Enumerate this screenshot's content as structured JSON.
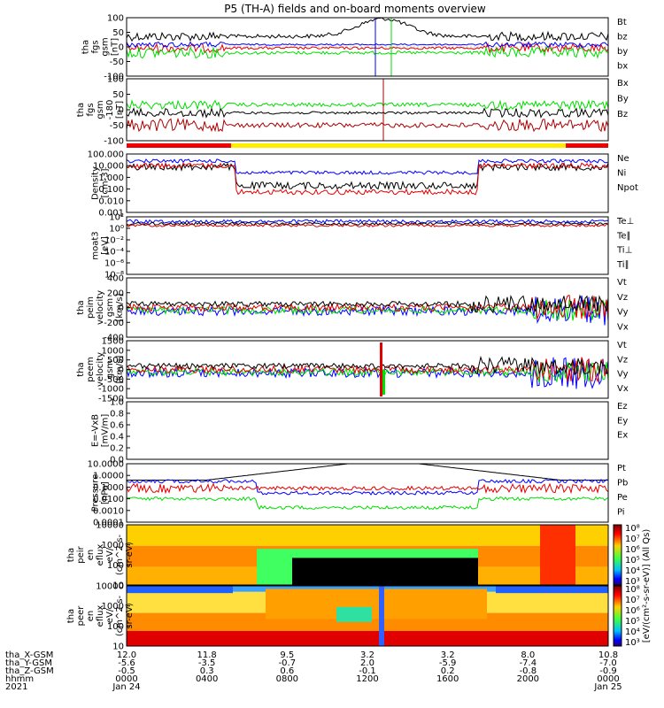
{
  "chart_data": {
    "type": "line",
    "title": "P5 (TH-A) fields and on-board moments overview",
    "colors": {
      "black": "#000000",
      "red": "#e00000",
      "green": "#00dd00",
      "blue": "#0000ff",
      "darkred": "#aa0000",
      "yellow": "#ffee00"
    },
    "panels": [
      {
        "ylabel": [
          "tha",
          "fgs",
          "gsm",
          "[nT]"
        ],
        "yticks": [
          "100",
          "50",
          "0",
          "-50",
          "-100"
        ],
        "legend": [
          [
            "Bt",
            "black"
          ],
          [
            "bz",
            "red"
          ],
          [
            "by",
            "green"
          ],
          [
            "bx",
            "blue"
          ]
        ]
      },
      {
        "ylabel": [
          "tha",
          "fgs",
          "gsm",
          "-180",
          "[nT]"
        ],
        "yticks": [
          "100",
          "50",
          "0",
          "-50",
          "-100"
        ],
        "legend": [
          [
            "Bx",
            "darkred"
          ],
          [
            "By",
            "green"
          ],
          [
            "Bz",
            "darkred"
          ]
        ]
      },
      {
        "ylabel": [
          "Density",
          "[cm-3]"
        ],
        "yticks": [
          "100.000",
          "10.000",
          "1.000",
          "0.100",
          "0.010",
          "0.001"
        ],
        "legend": [
          [
            "Ne",
            "red"
          ],
          [
            "Ni",
            "black"
          ],
          [
            "Npot",
            "blue"
          ]
        ]
      },
      {
        "ylabel": [
          "moat3",
          "[eV]"
        ],
        "yticks": [
          "10²",
          "10⁰",
          "10⁻²",
          "10⁻⁴",
          "10⁻⁶",
          "10⁻⁸"
        ],
        "legend": [
          [
            "Te⊥",
            "red"
          ],
          [
            "Te∥",
            "black"
          ],
          [
            "Ti⊥",
            "blue"
          ],
          [
            "Ti∥",
            "green"
          ]
        ]
      },
      {
        "ylabel": [
          "tha",
          "peim",
          "velocity",
          "gsm",
          "[km/s]"
        ],
        "yticks": [
          "400",
          "200",
          "0",
          "-200",
          "-400"
        ],
        "legend": [
          [
            "Vt",
            "black"
          ],
          [
            "Vz",
            "red"
          ],
          [
            "Vy",
            "green"
          ],
          [
            "Vx",
            "blue"
          ]
        ]
      },
      {
        "ylabel": [
          "tha",
          "peem",
          "velocity",
          "gsm",
          "[km/s]"
        ],
        "yticks": [
          "1500",
          "1000",
          "500",
          "0",
          "-500",
          "-1000",
          "-1500"
        ],
        "legend": [
          [
            "Vt",
            "black"
          ],
          [
            "Vz",
            "red"
          ],
          [
            "Vy",
            "green"
          ],
          [
            "Vx",
            "blue"
          ]
        ]
      },
      {
        "ylabel": [
          "E=-VxB",
          "[mV/m]"
        ],
        "yticks": [
          "1.0",
          "0.8",
          "0.6",
          "0.4",
          "0.2",
          "0.0"
        ],
        "legend": [
          [
            "Ez",
            "red"
          ],
          [
            "Ey",
            "green"
          ],
          [
            "Ex",
            "blue"
          ]
        ]
      },
      {
        "ylabel": [
          "Pressure",
          "[nPa]"
        ],
        "yticks": [
          "10.0000",
          "1.0000",
          "0.1000",
          "0.0100",
          "0.0010",
          "0.0001"
        ],
        "legend": [
          [
            "Pt",
            "black"
          ],
          [
            "Pb",
            "red"
          ],
          [
            "Pe",
            "green"
          ],
          [
            "Pi",
            "blue"
          ]
        ]
      },
      {
        "ylabel": [
          "tha",
          "peir",
          "en",
          "eflux",
          "eV/",
          "(cm^2-s-",
          "sr-eV)"
        ],
        "yticks": [
          "10000",
          "1000",
          "100",
          "10"
        ],
        "legend": []
      },
      {
        "ylabel": [
          "tha",
          "peer",
          "en",
          "eflux",
          "eV/",
          "(cm^2-s-",
          "sr-eV)"
        ],
        "yticks": [
          "10000",
          "1000",
          "100",
          "10"
        ],
        "legend": []
      }
    ],
    "colorbar": {
      "label": "[eV/(cm²-s-sr-eV)] (All Qs)",
      "ticks_top": [
        "10⁸",
        "10⁷",
        "10⁶",
        "10⁵",
        "10⁴",
        "10³"
      ],
      "ticks_bottom": [
        "10⁸",
        "10⁷",
        "10⁶",
        "10⁵",
        "10⁴",
        "10³"
      ]
    },
    "xaxis": {
      "row_labels": [
        "tha_X-GSM",
        "tha_Y-GSM",
        "tha_Z-GSM",
        "hhmm",
        "2021"
      ],
      "ticks": [
        {
          "x": "12.0",
          "y": "-5.6",
          "z": "-0.5",
          "t": "0000",
          "d": "Jan 24"
        },
        {
          "x": "11.8",
          "y": "-3.5",
          "z": "0.3",
          "t": "0400",
          "d": ""
        },
        {
          "x": "9.5",
          "y": "-0.7",
          "z": "0.6",
          "t": "0800",
          "d": ""
        },
        {
          "x": "3.2",
          "y": "2.0",
          "z": "-0.1",
          "t": "1200",
          "d": ""
        },
        {
          "x": "3.2",
          "y": "-5.9",
          "z": "0.2",
          "t": "1600",
          "d": ""
        },
        {
          "x": "8.0",
          "y": "-7.4",
          "z": "-0.8",
          "t": "2000",
          "d": ""
        },
        {
          "x": "10.8",
          "y": "-7.0",
          "z": "-0.9",
          "t": "0000",
          "d": "Jan 25"
        }
      ]
    }
  }
}
